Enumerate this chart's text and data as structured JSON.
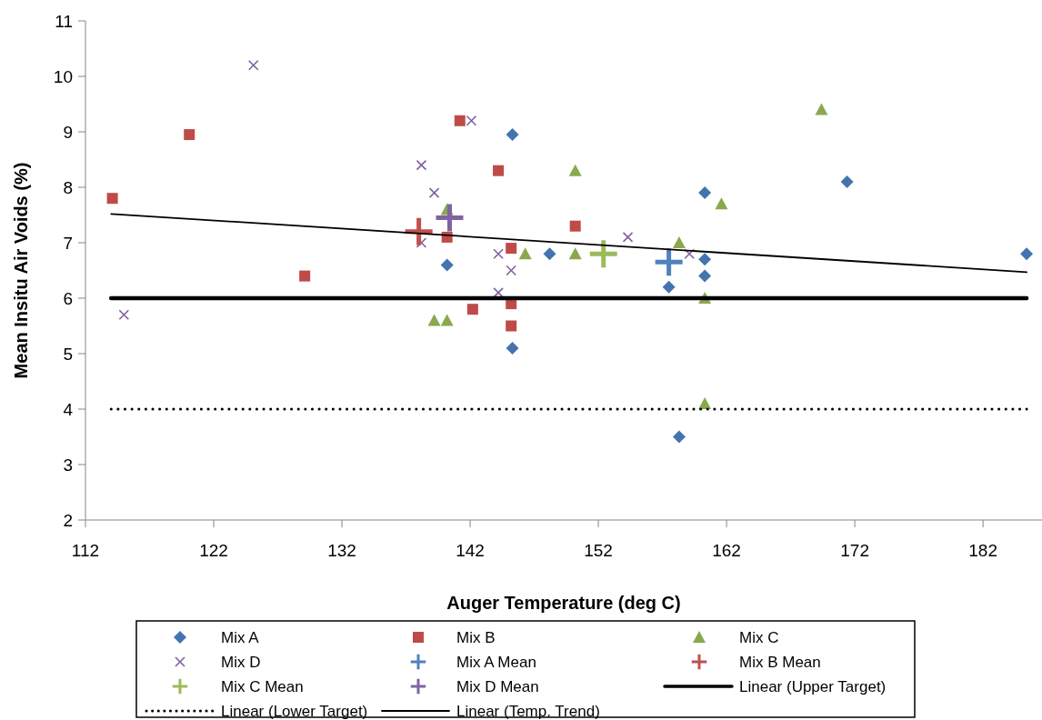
{
  "chart_data": {
    "type": "scatter",
    "xlabel": "Auger Temperature (deg C)",
    "ylabel": "Mean Insitu Air Voids (%)",
    "xlim": [
      112,
      186.6
    ],
    "xticks": [
      112,
      122,
      132,
      142,
      152,
      162,
      172,
      182
    ],
    "ylim": [
      2,
      11
    ],
    "yticks": [
      2,
      3,
      4,
      5,
      6,
      7,
      8,
      9,
      10,
      11
    ],
    "legend": "bottom",
    "series": [
      {
        "name": "Mix A",
        "color": "#4474b0",
        "marker": "diamond",
        "x": [
          145.3,
          140.2,
          148.2,
          145.3,
          157.5,
          160.3,
          160.3,
          160.3,
          158.3,
          171.4,
          185.4
        ],
        "values": [
          8.95,
          6.6,
          6.8,
          5.1,
          6.2,
          7.9,
          6.7,
          6.4,
          3.5,
          8.1,
          6.8
        ]
      },
      {
        "name": "Mix B",
        "color": "#be4b48",
        "marker": "square",
        "x": [
          114.1,
          120.1,
          129.1,
          141.2,
          144.2,
          140.2,
          145.2,
          150.2,
          142.2,
          145.2,
          145.2
        ],
        "values": [
          7.8,
          8.95,
          6.4,
          9.2,
          8.3,
          7.1,
          6.9,
          7.3,
          5.8,
          5.9,
          5.5
        ]
      },
      {
        "name": "Mix C",
        "color": "#8aa84e",
        "marker": "triangle",
        "x": [
          140.2,
          139.2,
          140.2,
          146.3,
          150.2,
          150.2,
          158.3,
          161.6,
          160.3,
          160.3,
          169.4
        ],
        "values": [
          7.6,
          5.6,
          5.6,
          6.8,
          8.3,
          6.8,
          7.0,
          7.7,
          6.0,
          4.1,
          9.4
        ]
      },
      {
        "name": "Mix D",
        "color": "#7f60a0",
        "marker": "x",
        "x": [
          125.1,
          115,
          138.2,
          139.2,
          138.2,
          142.1,
          144.2,
          145.2,
          144.2,
          154.3,
          159.1
        ],
        "values": [
          10.2,
          5.7,
          8.4,
          7.9,
          7.0,
          9.2,
          6.8,
          6.5,
          6.1,
          7.1,
          6.8
        ]
      },
      {
        "name": "Mix A Mean",
        "color": "#4f81bd",
        "marker": "cross",
        "x": [
          157.5
        ],
        "values": [
          6.65
        ]
      },
      {
        "name": "Mix B Mean",
        "color": "#c0504d",
        "marker": "cross",
        "x": [
          138
        ],
        "values": [
          7.2
        ]
      },
      {
        "name": "Mix C Mean",
        "color": "#9bbb59",
        "marker": "cross",
        "x": [
          152.4
        ],
        "values": [
          6.8
        ]
      },
      {
        "name": "Mix D Mean",
        "color": "#8064a2",
        "marker": "cross",
        "x": [
          140.4
        ],
        "values": [
          7.45
        ]
      },
      {
        "name": "Linear (Upper Target)",
        "type": "line",
        "color": "#000000",
        "marker": "none",
        "line_style": "solid",
        "x": [
          114,
          185.4
        ],
        "values": [
          6,
          6
        ]
      },
      {
        "name": "Linear (Lower Target)",
        "type": "line",
        "color": "#000000",
        "marker": "none",
        "line_style": "dotted",
        "x": [
          114,
          185.4
        ],
        "values": [
          4,
          4
        ]
      },
      {
        "name": "Linear (Temp. Trend)",
        "type": "line",
        "color": "#000000",
        "marker": "none",
        "line_style": "solid",
        "x": [
          114,
          185.4
        ],
        "values": [
          7.52,
          6.47
        ]
      }
    ]
  }
}
